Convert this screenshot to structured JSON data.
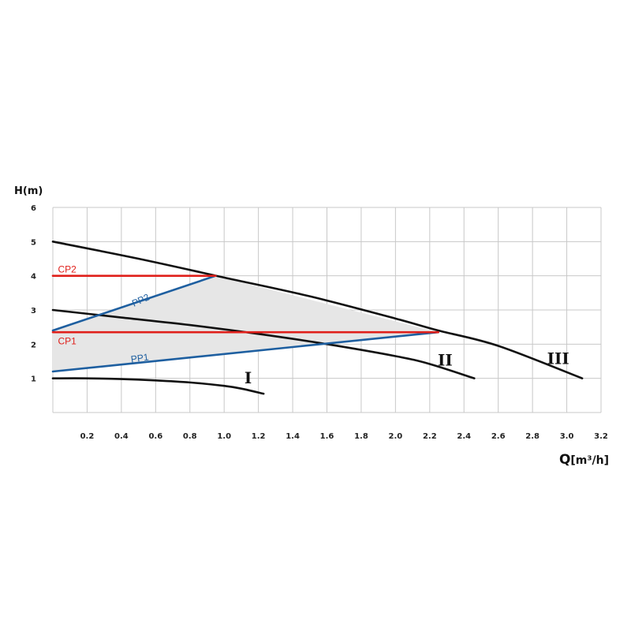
{
  "chart_data": {
    "type": "line",
    "xlabel": "Q",
    "xunit": "[m³/h]",
    "ylabel": "H(m)",
    "xlim": [
      0,
      3.2
    ],
    "ylim": [
      0,
      6
    ],
    "grid": true,
    "x_ticks": [
      "0.2",
      "0.4",
      "0.6",
      "0.8",
      "1.0",
      "1.2",
      "1.4",
      "1.6",
      "1.8",
      "2.0",
      "2.2",
      "2.4",
      "2.6",
      "2.8",
      "3.0",
      "3.2"
    ],
    "y_ticks": [
      "1",
      "2",
      "3",
      "4",
      "5",
      "6"
    ],
    "operating_region": {
      "fill": "#e6e6e6",
      "points": [
        [
          0,
          2.4
        ],
        [
          0.95,
          4.0
        ],
        [
          2.25,
          2.35
        ],
        [
          0,
          1.2
        ]
      ]
    },
    "series": [
      {
        "label": "I",
        "color": "#111111",
        "x": [
          0,
          0.2,
          0.4,
          0.6,
          0.8,
          1.0,
          1.1,
          1.23
        ],
        "y": [
          1.0,
          1.0,
          0.98,
          0.94,
          0.88,
          0.78,
          0.7,
          0.55
        ]
      },
      {
        "label": "II",
        "color": "#111111",
        "x": [
          0,
          0.4,
          0.8,
          1.2,
          1.6,
          2.0,
          2.2,
          2.46
        ],
        "y": [
          3.0,
          2.78,
          2.56,
          2.3,
          2.0,
          1.65,
          1.42,
          1.0
        ]
      },
      {
        "label": "III",
        "color": "#111111",
        "x": [
          0,
          0.5,
          1.0,
          1.5,
          2.0,
          2.25,
          2.6,
          3.09
        ],
        "y": [
          5.0,
          4.5,
          3.95,
          3.4,
          2.75,
          2.4,
          1.95,
          1.0
        ]
      },
      {
        "label": "CP2",
        "color": "#e0201b",
        "x": [
          0,
          0.95
        ],
        "y": [
          4.0,
          4.0
        ]
      },
      {
        "label": "CP1",
        "color": "#e0201b",
        "x": [
          0,
          2.25
        ],
        "y": [
          2.35,
          2.35
        ]
      },
      {
        "label": "PP2",
        "color": "#1e5fa0",
        "x": [
          0,
          0.95
        ],
        "y": [
          2.4,
          4.0
        ]
      },
      {
        "label": "PP1",
        "color": "#1e5fa0",
        "x": [
          0,
          2.25
        ],
        "y": [
          1.2,
          2.35
        ]
      }
    ]
  }
}
